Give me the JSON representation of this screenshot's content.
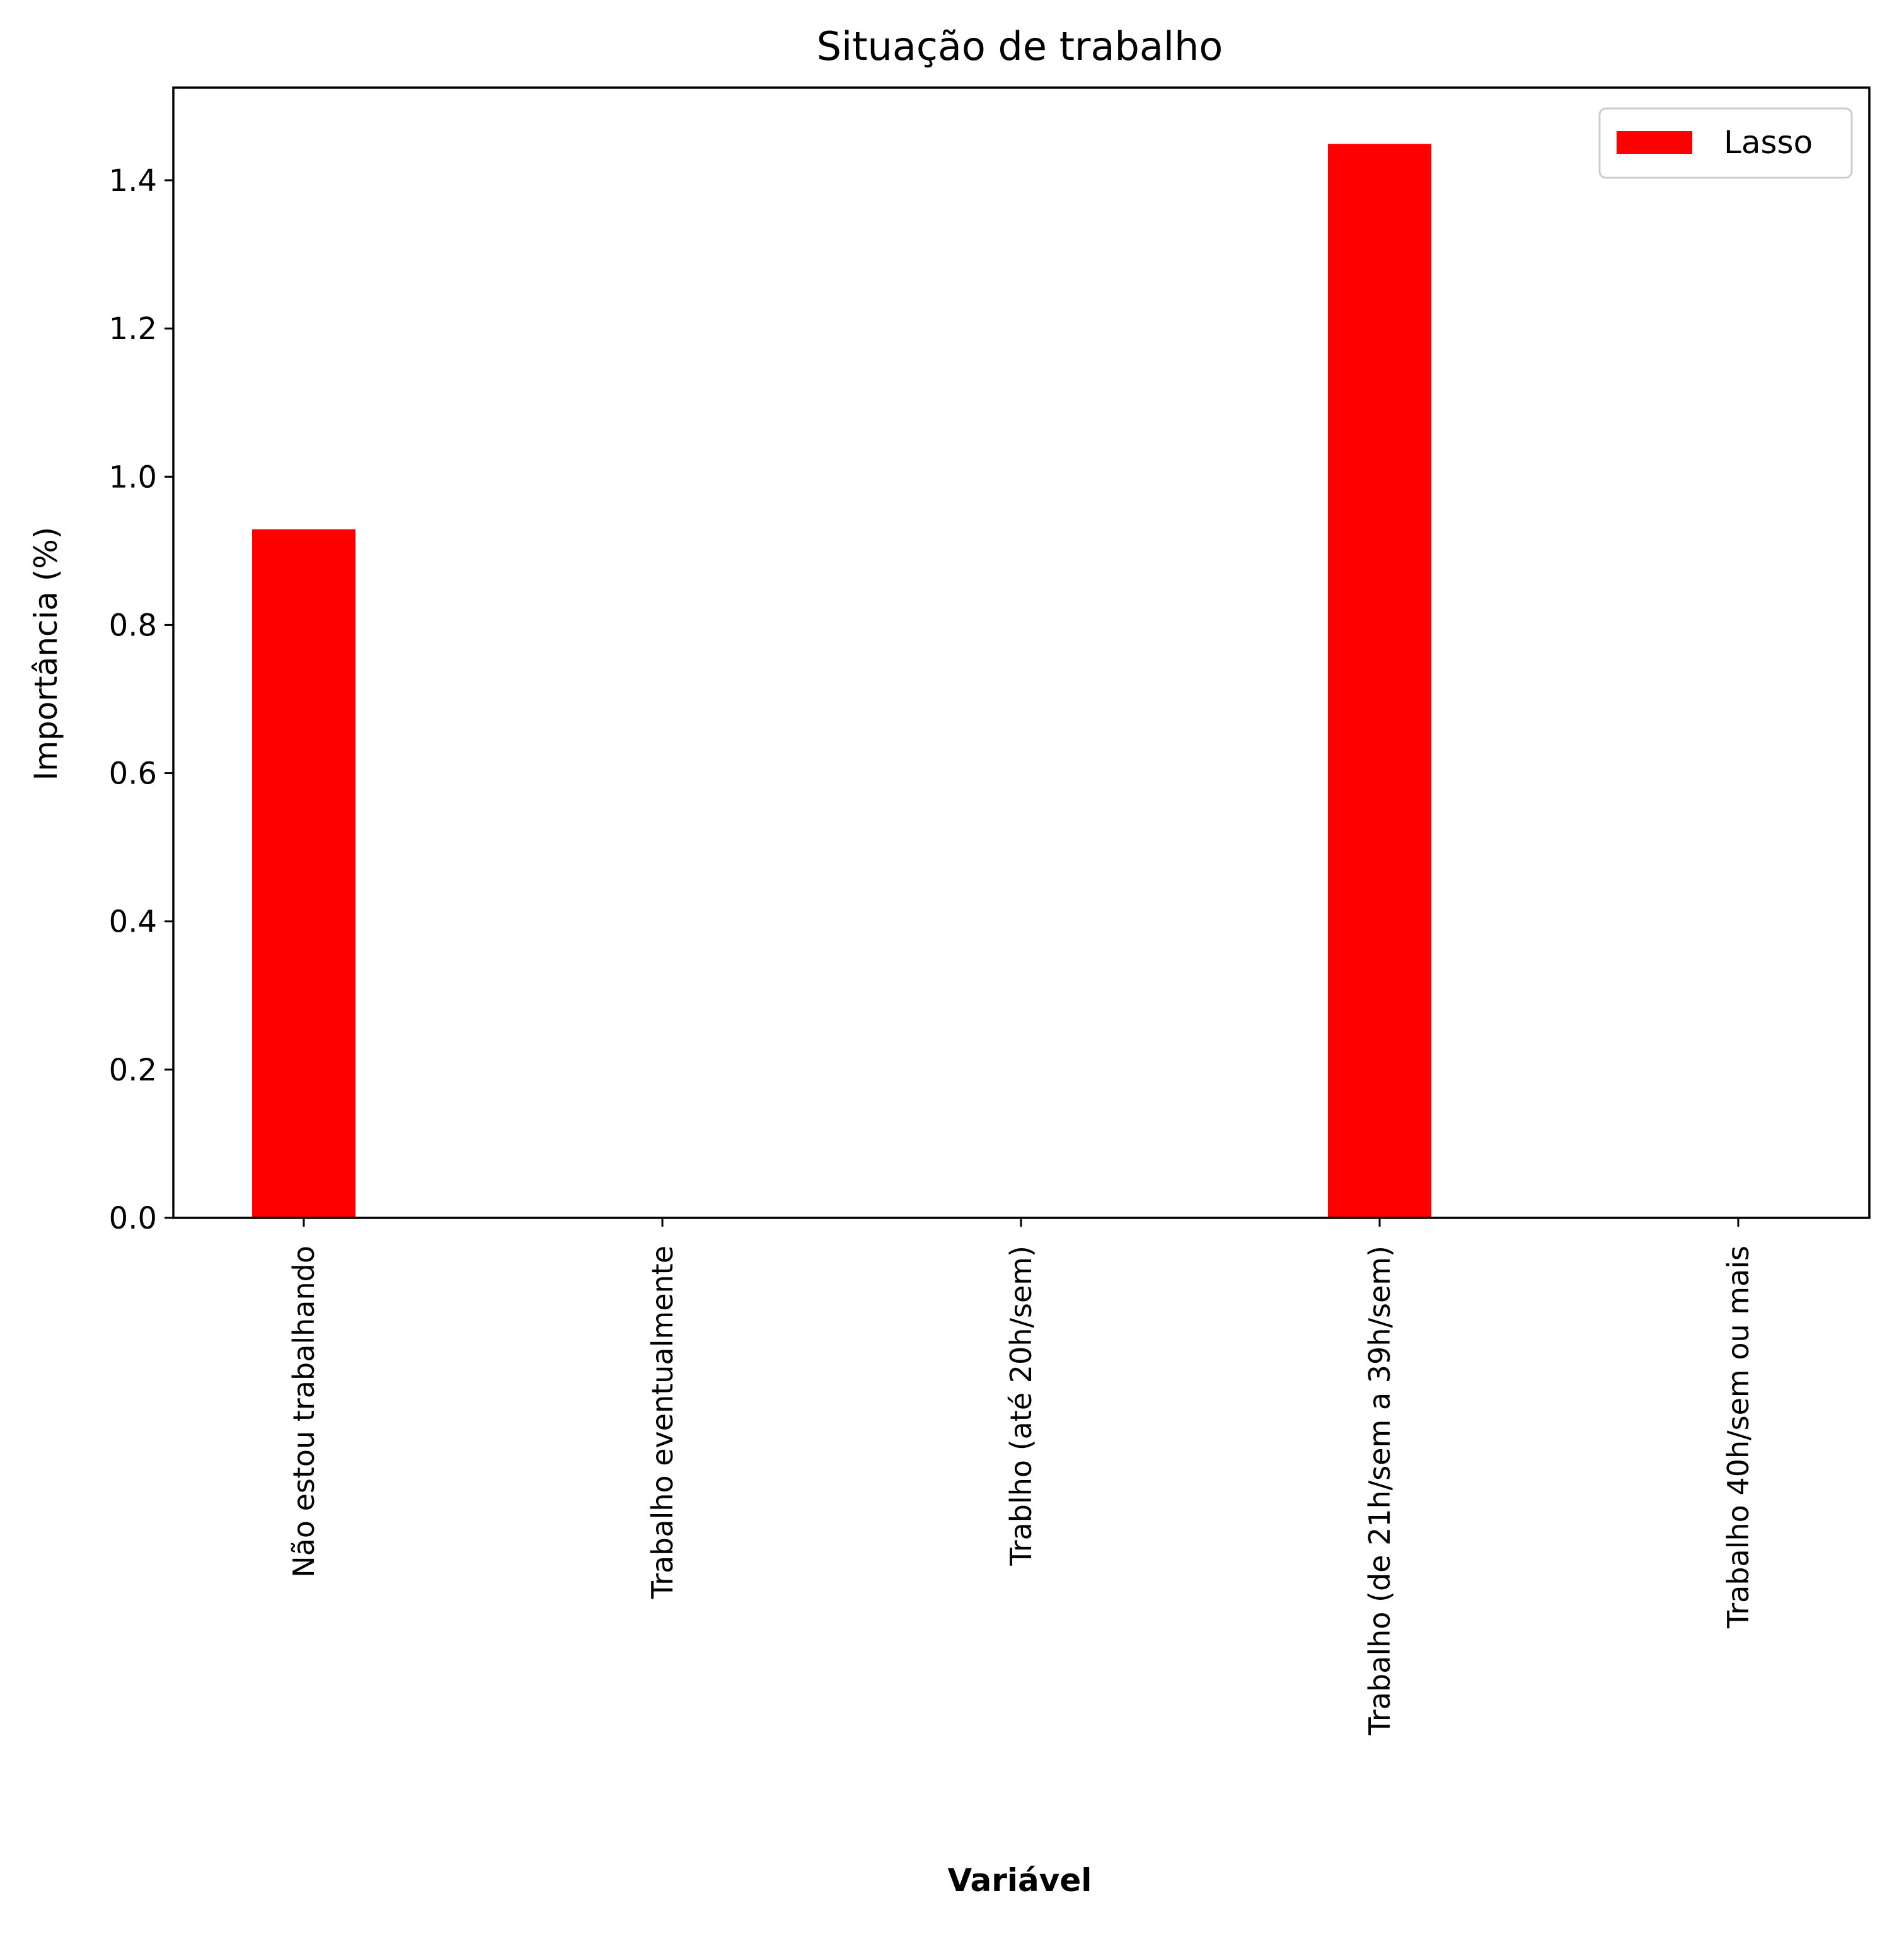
{
  "chart_data": {
    "type": "bar",
    "title": "Situação de trabalho",
    "xlabel": "Variável",
    "ylabel": "Importância (%)",
    "categories": [
      "Não estou trabalhando",
      "Trabalho eventualmente",
      "Trablho (até 20h/sem)",
      "Trabalho (de 21h/sem a 39h/sem)",
      "Trabalho 40h/sem ou mais"
    ],
    "series": [
      {
        "name": "Lasso",
        "values": [
          0.93,
          0.0,
          0.0,
          1.45,
          0.0
        ],
        "color": "#ff0000"
      }
    ],
    "yticks": [
      "0.0",
      "0.2",
      "0.4",
      "0.6",
      "0.8",
      "1.0",
      "1.2",
      "1.4"
    ],
    "ylim": [
      0,
      1.525
    ],
    "grid": false,
    "legend_position": "top-right"
  }
}
